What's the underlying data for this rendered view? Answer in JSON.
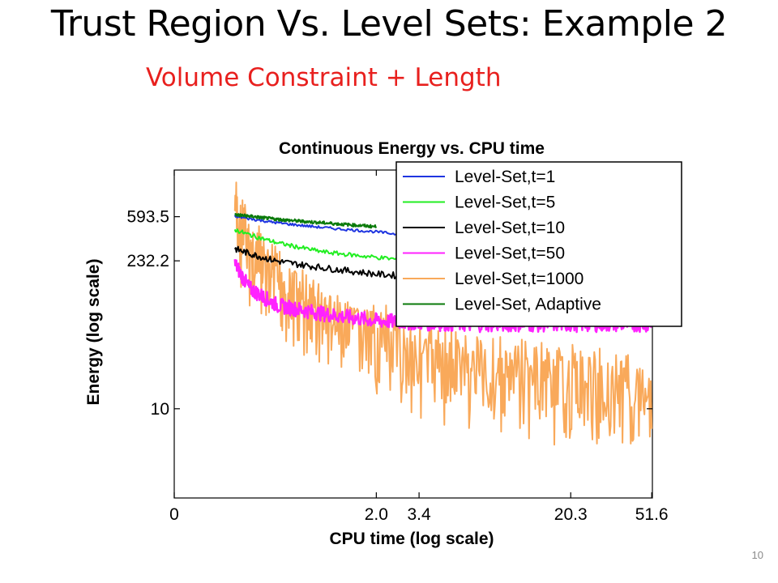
{
  "slide": {
    "title": "Trust Region Vs. Level Sets: Example 2",
    "subtitle": "Volume Constraint + Length",
    "number": "10"
  },
  "colors": {
    "subtitle": "#e8201e"
  },
  "chart_data": {
    "type": "line",
    "title": "Continuous Energy vs. CPU time",
    "xlabel": "CPU time (log scale)",
    "ylabel": "Energy (log scale)",
    "xscale": "log",
    "yscale": "log",
    "xlim": [
      0,
      52
    ],
    "ylim": [
      1.5,
      1600
    ],
    "x_ticks": [
      {
        "value": 0,
        "label": "0"
      },
      {
        "value": 2.0,
        "label": "2.0"
      },
      {
        "value": 3.4,
        "label": "3.4"
      },
      {
        "value": 20.3,
        "label": "20.3"
      },
      {
        "value": 51.6,
        "label": "51.6"
      }
    ],
    "y_ticks": [
      {
        "value": 593.5,
        "label": "593.5"
      },
      {
        "value": 232.2,
        "label": "232.2"
      },
      {
        "value": 10,
        "label": "10"
      }
    ],
    "legend_position": "top-right",
    "series": [
      {
        "name": "Level-Set,t=1",
        "color": "#1f35e0",
        "x": [
          0.22,
          0.5,
          1,
          2,
          3.4,
          6,
          10,
          20.3,
          51.6
        ],
        "y": [
          600,
          520,
          470,
          430,
          390,
          350,
          320,
          290,
          270
        ]
      },
      {
        "name": "Level-Set,t=5",
        "color": "#22ee22",
        "x": [
          0.22,
          0.5,
          1,
          2,
          3.4,
          6,
          10,
          20.3,
          51.6
        ],
        "y": [
          450,
          340,
          280,
          250,
          230,
          215,
          205,
          195,
          190
        ]
      },
      {
        "name": "Level-Set,t=10",
        "color": "#000000",
        "x": [
          0.22,
          0.5,
          1,
          2,
          3.4,
          6,
          10,
          20.3,
          51.6
        ],
        "y": [
          300,
          230,
          200,
          175,
          165,
          155,
          150,
          145,
          140
        ]
      },
      {
        "name": "Level-Set,t=50",
        "color": "#ff22ff",
        "x": [
          0.22,
          0.3,
          0.5,
          1,
          2,
          3.4,
          6,
          10,
          20.3,
          51.6
        ],
        "y": [
          220,
          130,
          90,
          75,
          65,
          62,
          60,
          60,
          60,
          60
        ]
      },
      {
        "name": "Level-Set,t=1000",
        "color": "#f9a95a",
        "x": [
          0.22,
          0.3,
          0.5,
          1,
          2,
          3.4,
          6,
          10,
          20.3,
          51.6
        ],
        "y": [
          900,
          400,
          200,
          100,
          60,
          45,
          35,
          30,
          25,
          22
        ]
      },
      {
        "name": "Level-Set, Adaptive",
        "color": "#0a7a0a",
        "x": [
          0.22,
          0.3,
          0.5,
          1,
          2
        ],
        "y": [
          620,
          600,
          560,
          520,
          480
        ]
      }
    ]
  }
}
